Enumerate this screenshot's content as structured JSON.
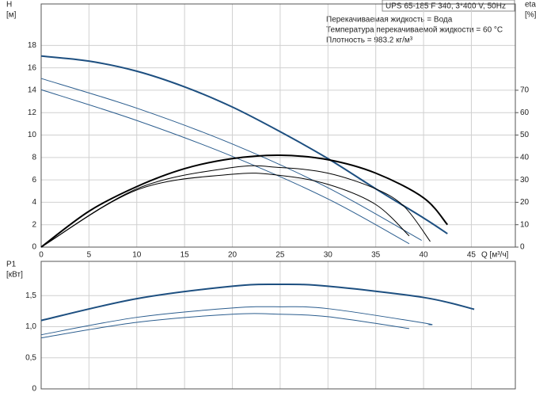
{
  "chart_data": [
    {
      "type": "line",
      "title": "UPS 65-185 F 340, 3*400 V, 50Hz",
      "annotations": [
        "Перекачиваемая жидкость = Вода",
        "Температура перекачиваемой жидкости = 60 °C",
        "Плотность = 983.2 кг/м³"
      ],
      "ylabel": "H",
      "ylabel_unit": "[м]",
      "y2label": "eta",
      "y2label_unit": "[%]",
      "xlabel": "Q [м³/ч]",
      "xlim": [
        0,
        49.6
      ],
      "xticks": [
        0,
        5,
        10,
        15,
        20,
        25,
        30,
        35,
        40,
        45
      ],
      "ylim": [
        0,
        21.7
      ],
      "yticks": [
        0,
        2,
        4,
        6,
        8,
        10,
        12,
        14,
        16,
        18
      ],
      "y2lim": [
        0,
        108.5
      ],
      "y2ticks": [
        0,
        10,
        20,
        30,
        40,
        50,
        60,
        70
      ],
      "grid": true,
      "series": [
        {
          "color": "#1d4f80",
          "width": 2,
          "x": [
            0,
            5,
            10,
            15,
            20,
            25,
            30,
            35,
            40,
            42.5
          ],
          "values": [
            17.05,
            16.6,
            15.7,
            14.3,
            12.5,
            10.3,
            7.9,
            5.2,
            2.6,
            1.2
          ]
        },
        {
          "color": "#2b5d8e",
          "width": 1,
          "x": [
            0,
            10,
            20,
            30,
            39.8
          ],
          "values": [
            15.05,
            12.4,
            9.2,
            5.3,
            0.6
          ]
        },
        {
          "color": "#2b5d8e",
          "width": 1,
          "x": [
            0,
            10,
            20,
            30,
            38.5
          ],
          "values": [
            14.05,
            11.3,
            8.1,
            4.3,
            0.3
          ]
        },
        {
          "color": "#000000",
          "width": 2,
          "axis": "y2",
          "x": [
            0,
            5,
            10,
            15,
            20,
            25,
            30,
            35,
            40,
            42.5
          ],
          "values": [
            0,
            16,
            27,
            35,
            39.5,
            41,
            39,
            33,
            22,
            10
          ]
        },
        {
          "color": "#000000",
          "width": 1,
          "axis": "y2",
          "x": [
            0,
            10,
            20,
            25,
            30,
            35,
            38,
            40.7
          ],
          "values": [
            0,
            26,
            35.5,
            35.5,
            33,
            26,
            18,
            2.5
          ]
        },
        {
          "color": "#000000",
          "width": 1,
          "axis": "y2",
          "x": [
            0,
            10,
            20,
            25,
            30,
            35,
            38.5
          ],
          "values": [
            0,
            25.5,
            32.5,
            32,
            28,
            19,
            5
          ]
        }
      ]
    },
    {
      "type": "line",
      "ylabel": "P1",
      "ylabel_unit": "[кВт]",
      "xlim": [
        0,
        49.6
      ],
      "xticks": [
        0,
        5,
        10,
        15,
        20,
        25,
        30,
        35,
        40,
        45
      ],
      "ylim": [
        0,
        2.05
      ],
      "yticks": [
        {
          "value": 0,
          "label": "0"
        },
        {
          "value": 0.5,
          "label": "0,5"
        },
        {
          "value": 1,
          "label": "1,0"
        },
        {
          "value": 1.5,
          "label": "1,5"
        }
      ],
      "grid": true,
      "series": [
        {
          "color": "#1d4f80",
          "width": 2,
          "x": [
            0,
            10,
            20,
            25,
            30,
            40,
            45.3
          ],
          "values": [
            1.1,
            1.45,
            1.65,
            1.68,
            1.65,
            1.47,
            1.28
          ]
        },
        {
          "color": "#2b5d8e",
          "width": 1,
          "x": [
            0,
            10,
            20,
            25,
            30,
            40,
            40.5
          ],
          "values": [
            0.87,
            1.15,
            1.3,
            1.32,
            1.29,
            1.06,
            1.03
          ]
        },
        {
          "color": "#2b5d8e",
          "width": 1,
          "x": [
            0,
            10,
            20,
            25,
            30,
            38.5
          ],
          "values": [
            0.82,
            1.07,
            1.2,
            1.2,
            1.16,
            0.97
          ]
        }
      ]
    }
  ]
}
